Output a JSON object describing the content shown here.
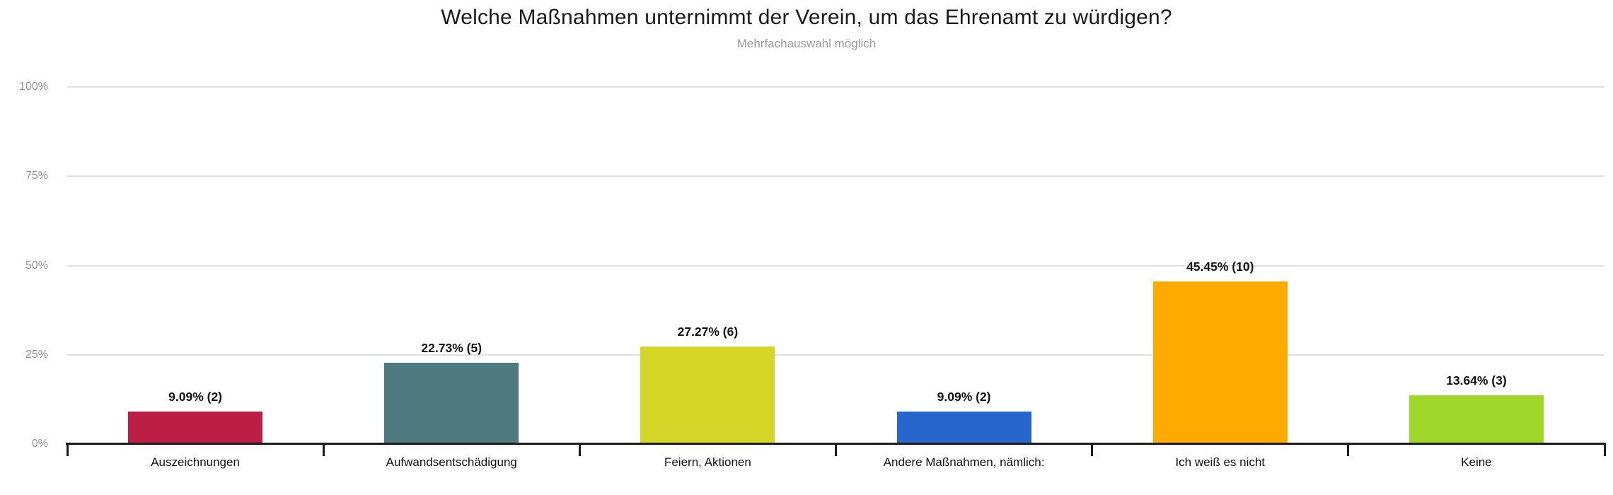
{
  "chart": {
    "title": "Welche Maßnahmen unternimmt der Verein, um das Ehrenamt zu würdigen?",
    "subtitle": "Mehrfachauswahl möglich"
  },
  "chart_data": {
    "type": "bar",
    "title": "Welche Maßnahmen unternimmt der Verein, um das Ehrenamt zu würdigen?",
    "subtitle": "Mehrfachauswahl möglich",
    "categories": [
      "Auszeichnungen",
      "Aufwandsentschädigung",
      "Feiern, Aktionen",
      "Andere Maßnahmen, nämlich:",
      "Ich weiß es nicht",
      "Keine"
    ],
    "values_percent": [
      9.09,
      22.73,
      27.27,
      9.09,
      45.45,
      13.64
    ],
    "counts": [
      2,
      5,
      6,
      2,
      10,
      3
    ],
    "bar_labels": [
      "9.09% (2)",
      "22.73% (5)",
      "27.27% (6)",
      "9.09% (2)",
      "45.45% (10)",
      "13.64% (3)"
    ],
    "bar_colors": [
      "#BB1F45",
      "#4E7A80",
      "#D4D628",
      "#2767CD",
      "#FFAA00",
      "#9ED629"
    ],
    "y_ticks": [
      {
        "label": "0%",
        "value": 0
      },
      {
        "label": "25%",
        "value": 25
      },
      {
        "label": "50%",
        "value": 50
      },
      {
        "label": "75%",
        "value": 75
      },
      {
        "label": "100%",
        "value": 100
      }
    ],
    "ylim": [
      0,
      100
    ],
    "xlabel": "",
    "ylabel": "",
    "grid": true,
    "legend_position": "none",
    "colors": {
      "title": "#1A1A1A",
      "subtitle": "#9B9B9B",
      "grid": "#E1E1E1",
      "axis": "#1C1C1C",
      "y_label": "#949494",
      "value_label": "#111111",
      "category_label": "#111111"
    }
  }
}
